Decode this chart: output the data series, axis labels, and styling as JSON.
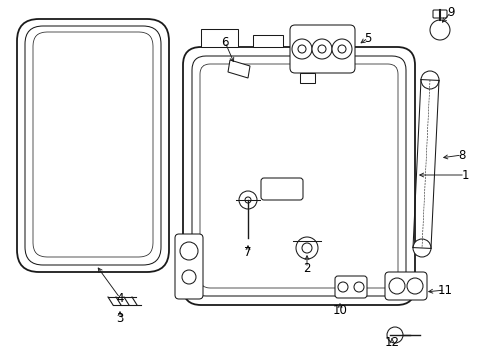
{
  "bg_color": "#ffffff",
  "line_color": "#1a1a1a",
  "label_color": "#000000",
  "figsize": [
    4.89,
    3.6
  ],
  "dpi": 100,
  "lw_main": 1.3,
  "lw_thin": 0.75,
  "lw_med": 1.0
}
